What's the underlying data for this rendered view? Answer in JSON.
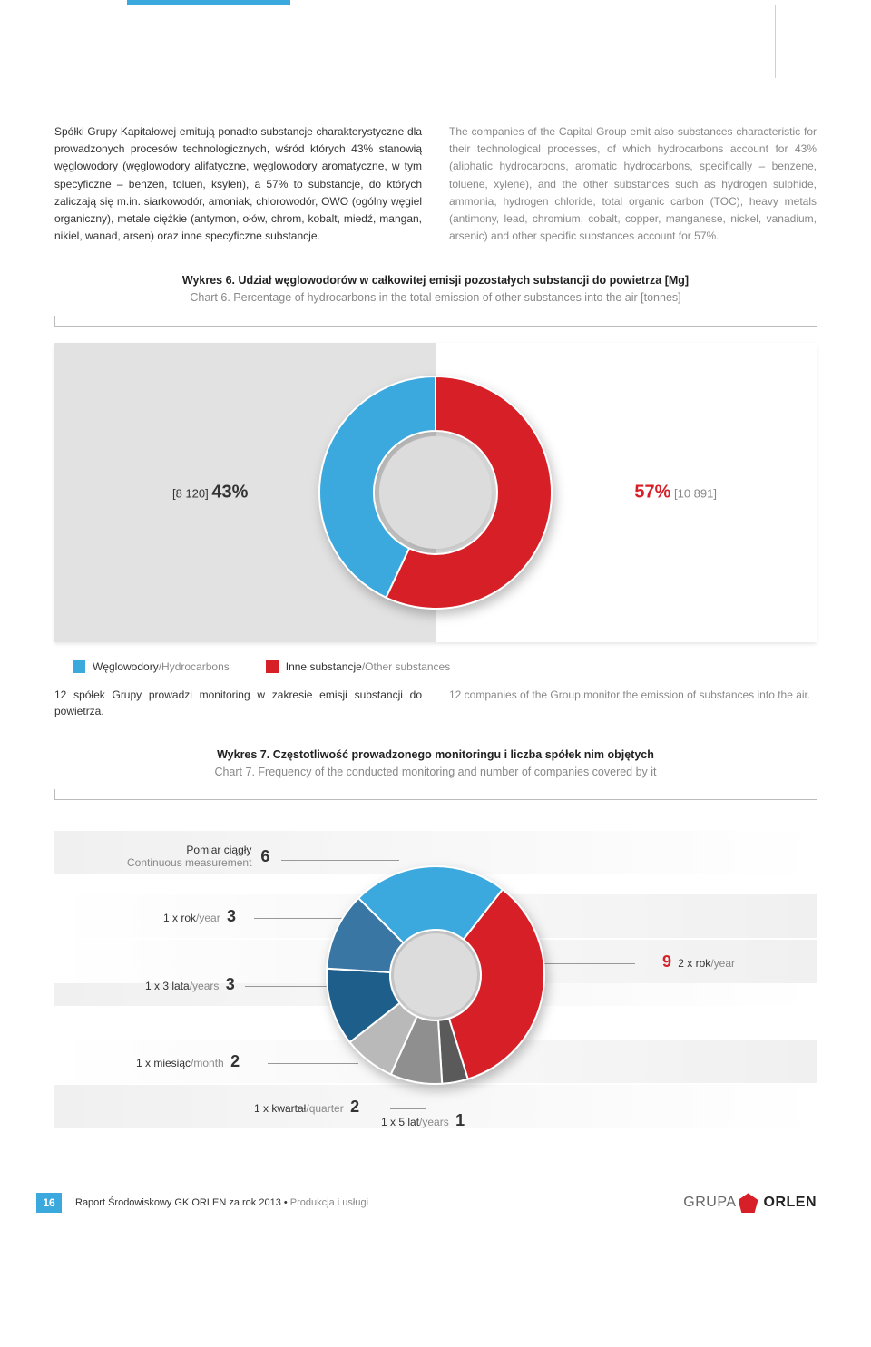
{
  "colors": {
    "blue": "#3ba9de",
    "red": "#d61f26",
    "gray_bg": "#e2e2e2",
    "text_gray": "#888888"
  },
  "intro": {
    "pl": "Spółki Grupy Kapitałowej emitują ponadto substancje charakterystyczne dla prowadzonych procesów technologicznych, wśród których 43% stanowią węglowodory (węglowodory alifatyczne, węglowodory aromatyczne, w tym specyficzne – benzen, toluen, ksylen), a 57% to substancje, do których zaliczają się m.in. siarkowodór, amoniak, chlorowodór, OWO (ogólny węgiel organiczny), metale ciężkie (antymon, ołów, chrom, kobalt, miedź, mangan, nikiel, wanad, arsen) oraz inne specyficzne substancje.",
    "en": "The companies of the Capital Group emit also substances characteristic for their technological processes, of which hydrocarbons account for 43% (aliphatic hydrocarbons, aromatic hydrocarbons, specifically – benzene, toluene, xylene), and the other substances such as hydrogen sulphide, ammonia, hydrogen chloride, total organic carbon (TOC), heavy metals (antimony, lead, chromium, cobalt, copper, manganese, nickel, vanadium, arsenic) and other specific substances account for 57%."
  },
  "chart6": {
    "title_pl": "Wykres 6. Udział węglowodorów w całkowitej emisji pozostałych substancji do powietrza [Mg]",
    "title_en": "Chart 6. Percentage of hydrocarbons in the total emission of other substances into the air [tonnes]",
    "slice_blue": {
      "pct": "43%",
      "value": "[8 120]",
      "color": "#3ba9de",
      "angle_start": 90,
      "angle_end": 244.8
    },
    "slice_red": {
      "pct": "57%",
      "value": "[10 891]",
      "color": "#d61f26",
      "angle_start": -115.2,
      "angle_end": 90
    },
    "inner_radius": 68,
    "outer_radius": 128,
    "legend": [
      {
        "color": "#3ba9de",
        "pl": "Węglowodory",
        "en": "/Hydrocarbons"
      },
      {
        "color": "#d61f26",
        "pl": "Inne substancje",
        "en": "/Other substances"
      }
    ]
  },
  "monitoring": {
    "pl": "12 spółek Grupy prowadzi monitoring w zakresie emisji substancji do powietrza.",
    "en": "12 companies of the Group monitor the emission of substances into the air."
  },
  "chart7": {
    "title_pl": "Wykres 7. Częstotliwość prowadzonego monitoringu i liczba spółek nim objętych",
    "title_en": "Chart 7. Frequency of the conducted monitoring and number of companies covered by it",
    "inner_radius": 50,
    "outer_radius": 120,
    "slices": [
      {
        "label_pl": "Pomiar ciągły",
        "label_en": "Continuous measurement",
        "num": "6",
        "color": "#3ba9de",
        "side": "left"
      },
      {
        "label_pl": "1 x rok",
        "label_en": "/year",
        "num": "3",
        "color": "#3a76a3",
        "side": "left"
      },
      {
        "label_pl": "1 x 3 lata",
        "label_en": "/years",
        "num": "3",
        "color": "#1d5f8a",
        "side": "left"
      },
      {
        "label_pl": "1 x miesiąc",
        "label_en": "/month",
        "num": "2",
        "color": "#b9b9b9",
        "side": "left"
      },
      {
        "label_pl": "1 x kwartał",
        "label_en": "/quarter",
        "num": "2",
        "color": "#8f8f8f",
        "side": "bottom"
      },
      {
        "label_pl": "1 x 5 lat",
        "label_en": "/years",
        "num": "1",
        "color": "#5a5a5a",
        "side": "bottom"
      },
      {
        "label_pl": "2 x rok",
        "label_en": "/year",
        "num": "9",
        "color": "#d61f26",
        "side": "right"
      }
    ]
  },
  "footer": {
    "page": "16",
    "text": "Raport Środowiskowy GK ORLEN za rok 2013",
    "section": "Produkcja i usługi",
    "logo_thin": "GRUPA",
    "logo_bold": "ORLEN"
  }
}
